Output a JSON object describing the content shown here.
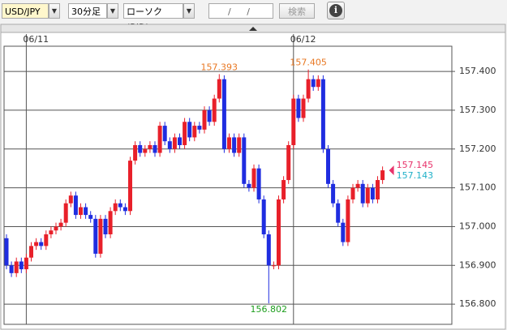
{
  "toolbar": {
    "pair": "USD/JPY",
    "interval": "30分足",
    "chart_kind": "ローソク(BID)",
    "date_placeholder": "/ /",
    "search": "検索"
  },
  "chart_data": {
    "type": "candlestick",
    "up_color": "#e8202a",
    "down_color": "#1f2de0",
    "categories": [
      null,
      null,
      null,
      null,
      "06/11",
      null,
      null,
      null,
      null,
      null,
      null,
      null,
      null,
      null,
      null,
      null,
      null,
      null,
      null,
      null,
      null,
      null,
      null,
      null,
      null,
      null,
      null,
      null,
      null,
      null,
      null,
      null,
      null,
      null,
      null,
      null,
      null,
      null,
      null,
      null,
      null,
      null,
      null,
      null,
      null,
      null,
      null,
      null,
      null,
      null,
      null,
      null,
      null,
      null,
      null,
      null,
      null,
      null,
      "06/12",
      null,
      null,
      null,
      null,
      null,
      null,
      null,
      null,
      null,
      null,
      null,
      null,
      null,
      null,
      null,
      null,
      null,
      null
    ],
    "open": [
      156.97,
      156.9,
      156.88,
      156.91,
      156.89,
      156.92,
      156.95,
      156.96,
      156.95,
      156.98,
      156.99,
      157.0,
      157.01,
      157.06,
      157.08,
      157.03,
      157.05,
      157.03,
      157.02,
      156.93,
      157.02,
      156.98,
      157.04,
      157.06,
      157.05,
      157.04,
      157.17,
      157.21,
      157.19,
      157.2,
      157.21,
      157.19,
      157.26,
      157.22,
      157.2,
      157.23,
      157.21,
      157.27,
      157.23,
      157.26,
      157.25,
      157.3,
      157.27,
      157.33,
      157.38,
      157.2,
      157.23,
      157.19,
      157.23,
      157.11,
      157.1,
      157.15,
      157.07,
      156.98,
      156.9,
      156.9,
      157.07,
      157.12,
      157.21,
      157.33,
      157.28,
      157.33,
      157.38,
      157.36,
      157.38,
      157.2,
      157.11,
      157.06,
      157.01,
      156.96,
      157.07,
      157.1,
      157.11,
      157.06,
      157.1,
      157.07,
      157.12
    ],
    "high": [
      156.98,
      156.91,
      156.92,
      156.92,
      156.93,
      156.96,
      156.97,
      156.97,
      156.99,
      157.0,
      157.01,
      157.02,
      157.07,
      157.09,
      157.09,
      157.06,
      157.06,
      157.04,
      157.03,
      157.03,
      157.03,
      157.05,
      157.07,
      157.07,
      157.06,
      157.18,
      157.22,
      157.22,
      157.21,
      157.22,
      157.22,
      157.27,
      157.27,
      157.23,
      157.24,
      157.24,
      157.28,
      157.28,
      157.27,
      157.27,
      157.31,
      157.31,
      157.34,
      157.393,
      157.39,
      157.24,
      157.24,
      157.24,
      157.24,
      157.12,
      157.16,
      157.16,
      157.08,
      156.99,
      156.91,
      157.08,
      157.13,
      157.22,
      157.34,
      157.34,
      157.34,
      157.405,
      157.39,
      157.39,
      157.39,
      157.21,
      157.12,
      157.07,
      157.02,
      157.08,
      157.11,
      157.12,
      157.12,
      157.11,
      157.11,
      157.13,
      157.155
    ],
    "low": [
      156.89,
      156.87,
      156.87,
      156.88,
      156.88,
      156.91,
      156.94,
      156.94,
      156.94,
      156.97,
      156.98,
      156.99,
      157.0,
      157.05,
      157.02,
      157.02,
      157.02,
      157.01,
      156.92,
      156.92,
      156.97,
      156.97,
      157.03,
      157.04,
      157.03,
      157.03,
      157.16,
      157.18,
      157.18,
      157.19,
      157.18,
      157.18,
      157.21,
      157.19,
      157.19,
      157.2,
      157.2,
      157.22,
      157.22,
      157.24,
      157.24,
      157.26,
      157.26,
      157.32,
      157.19,
      157.19,
      157.18,
      157.18,
      157.1,
      157.09,
      157.09,
      157.06,
      156.97,
      156.802,
      156.89,
      156.89,
      157.06,
      157.11,
      157.2,
      157.27,
      157.27,
      157.32,
      157.35,
      157.35,
      157.19,
      157.1,
      157.05,
      157.0,
      156.95,
      156.95,
      157.06,
      157.09,
      157.05,
      157.05,
      157.06,
      157.06,
      157.11
    ],
    "close": [
      156.9,
      156.88,
      156.91,
      156.89,
      156.92,
      156.95,
      156.96,
      156.95,
      156.98,
      156.99,
      157.0,
      157.01,
      157.06,
      157.08,
      157.03,
      157.05,
      157.03,
      157.02,
      156.93,
      157.02,
      156.98,
      157.04,
      157.06,
      157.05,
      157.04,
      157.17,
      157.21,
      157.19,
      157.2,
      157.21,
      157.19,
      157.26,
      157.22,
      157.2,
      157.23,
      157.21,
      157.27,
      157.23,
      157.26,
      157.25,
      157.3,
      157.27,
      157.33,
      157.38,
      157.2,
      157.23,
      157.19,
      157.23,
      157.11,
      157.1,
      157.15,
      157.07,
      156.98,
      156.9,
      156.9,
      157.07,
      157.12,
      157.21,
      157.33,
      157.28,
      157.33,
      157.38,
      157.36,
      157.38,
      157.2,
      157.11,
      157.06,
      157.01,
      156.96,
      157.07,
      157.1,
      157.11,
      157.06,
      157.1,
      157.07,
      157.12,
      157.145
    ],
    "high_annotations": [
      {
        "label": "157.393",
        "value": 157.393,
        "color": "#e87722"
      },
      {
        "label": "157.405",
        "value": 157.405,
        "color": "#e87722"
      }
    ],
    "low_annotations": [
      {
        "label": "156.802",
        "value": 156.802,
        "color": "#1e9e1e"
      }
    ],
    "price_markers": [
      {
        "label": "157.145",
        "value": 157.145,
        "color": "#e8336b"
      },
      {
        "label": "157.143",
        "value": 157.143,
        "color": "#1fb0c8"
      }
    ],
    "ylim": [
      156.748,
      157.465
    ],
    "yticks": [
      {
        "value": 156.8,
        "label": "156.800"
      },
      {
        "value": 156.9,
        "label": "156.900"
      },
      {
        "value": 157.0,
        "label": "157.000"
      },
      {
        "value": 157.1,
        "label": "157.100"
      },
      {
        "value": 157.2,
        "label": "157.200"
      },
      {
        "value": 157.3,
        "label": "157.300"
      },
      {
        "value": 157.4,
        "label": "157.400"
      }
    ],
    "grid": true
  }
}
